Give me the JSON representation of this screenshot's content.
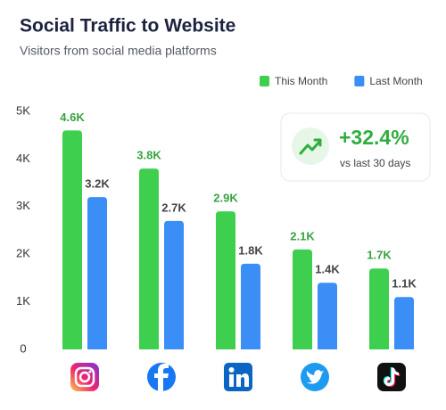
{
  "chart_data": {
    "type": "bar",
    "title": "Social Traffic to Website",
    "subtitle": "Visitors from social media platforms",
    "categories": [
      null,
      null,
      null,
      null,
      null
    ],
    "series": [
      {
        "name": "This Month",
        "color": "#3fcf4f",
        "values": [
          4600,
          3800,
          2900,
          2100,
          1700
        ],
        "value_labels": [
          "4.6K",
          "3.8K",
          "2.9K",
          "2.1K",
          "1.7K"
        ]
      },
      {
        "name": "Last Month",
        "color": "#3a8ef6",
        "values": [
          3200,
          2700,
          1800,
          1400,
          1100
        ],
        "value_labels": [
          "3.2K",
          "2.7K",
          "1.8K",
          "1.4K",
          "1.1K"
        ]
      }
    ],
    "ylim": [
      0,
      5000
    ],
    "yticks": [
      0,
      {
        "value": 1000,
        "label": "1K"
      },
      {
        "value": 2000,
        "label": "2K"
      },
      {
        "value": 3000,
        "label": "3K"
      },
      {
        "value": 4000,
        "label": "4K"
      },
      {
        "value": 5000,
        "label": "5K"
      }
    ],
    "grid": false,
    "legend": "top-right",
    "annotation": {
      "value": "+32.4%",
      "subtext": "vs last 30 days"
    }
  }
}
